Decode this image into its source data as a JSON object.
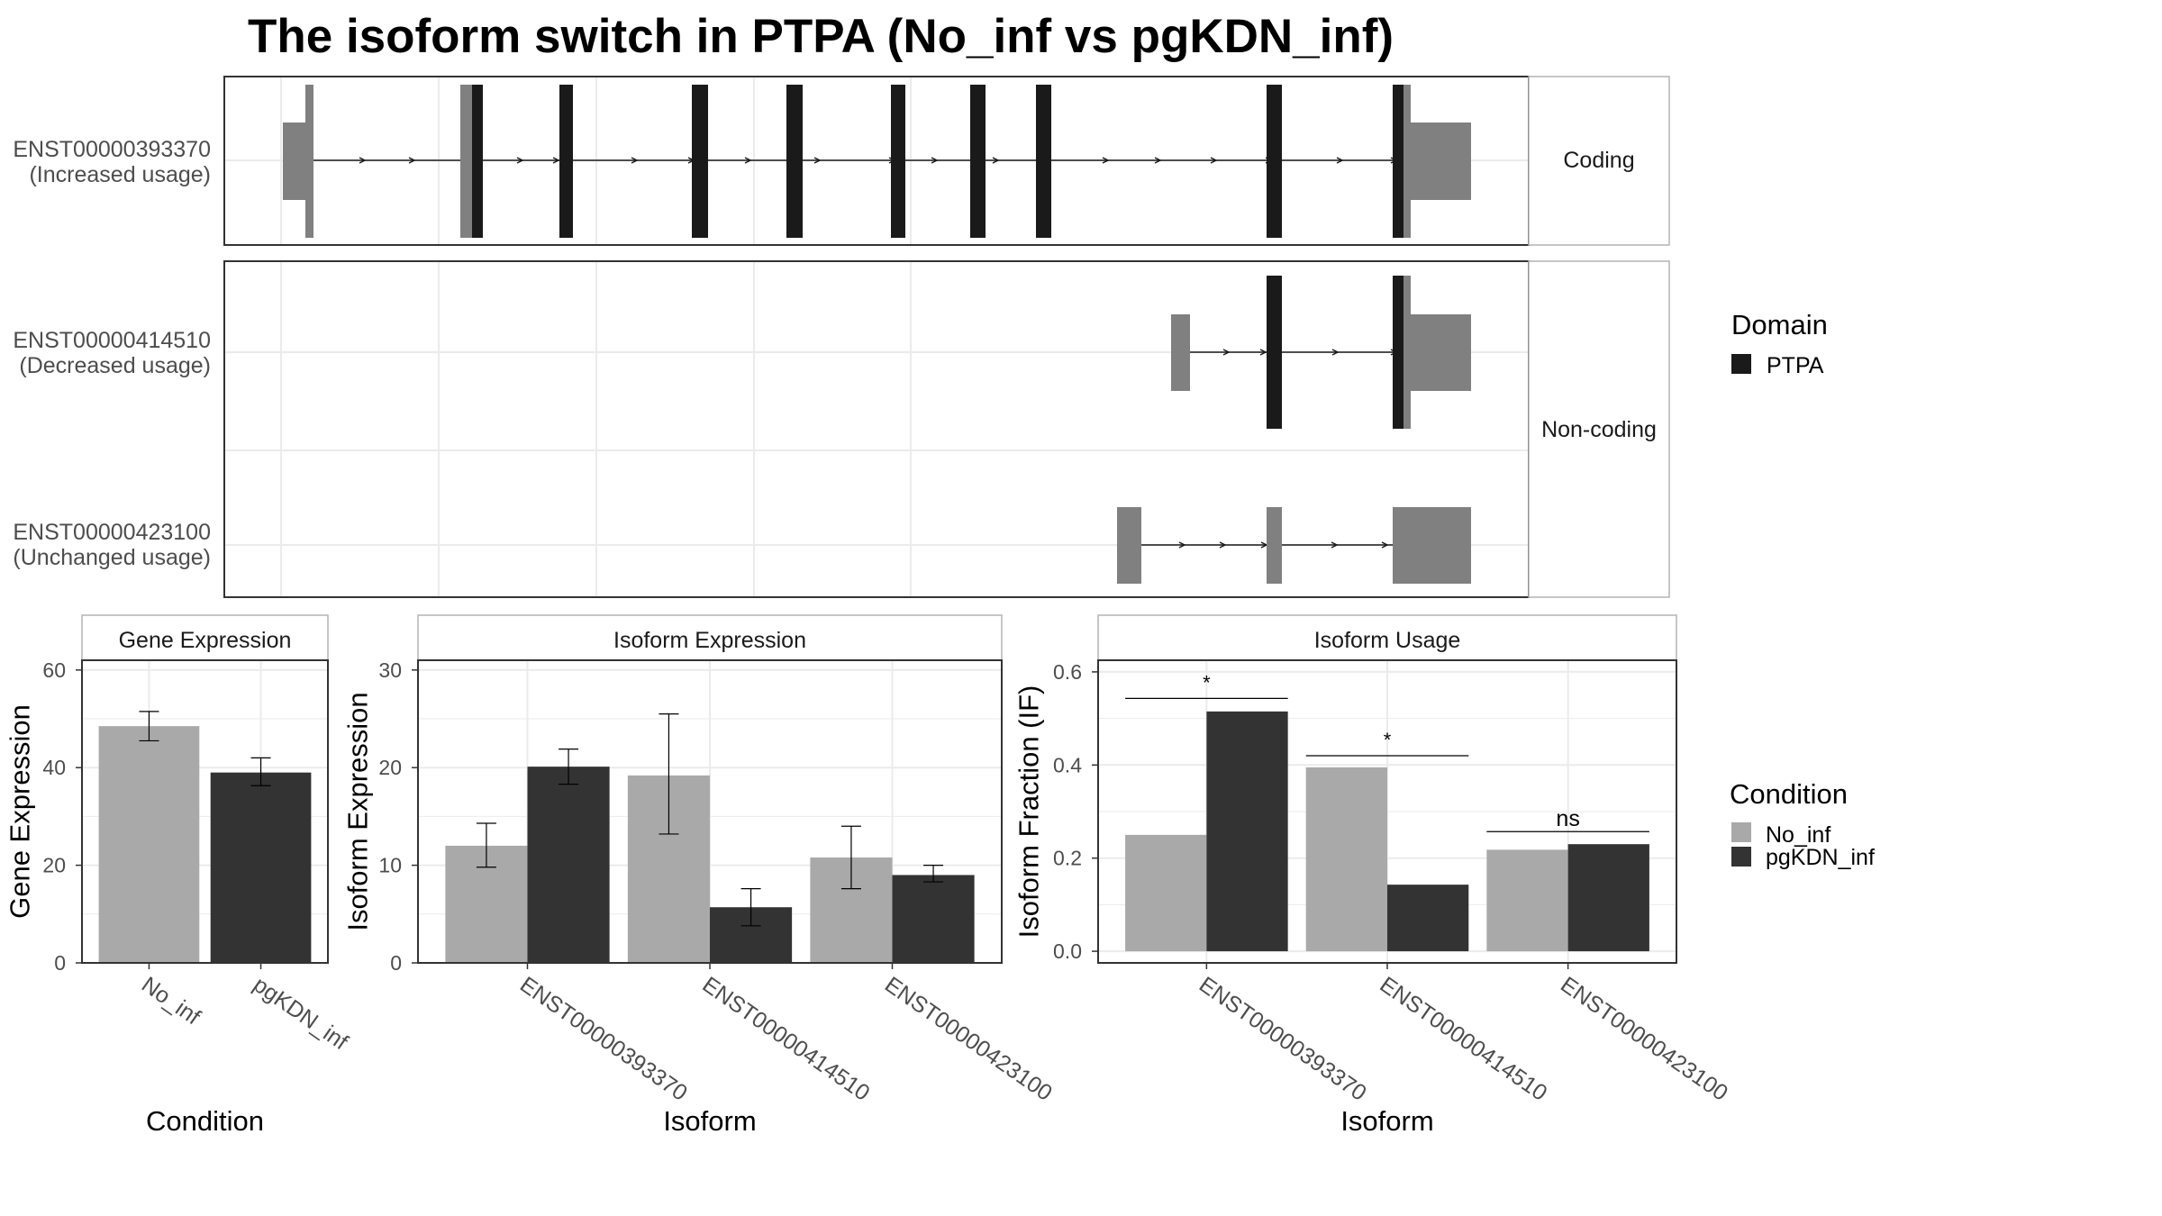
{
  "title": "The isoform switch in PTPA (No_inf vs pgKDN_inf)",
  "colors": {
    "no_inf": "#a9a9a9",
    "pgkdn_inf": "#333333",
    "utr": "#808080",
    "cds": "#1a1a1a",
    "grid": "#ebebeb",
    "strip": "#ffffff",
    "frame": "#333333",
    "strip_border": "#b3b3b3"
  },
  "structure_panel": {
    "facets": [
      "Coding",
      "Non-coding"
    ],
    "transcripts": [
      {
        "id": "ENST00000393370",
        "usage": "(Increased usage)",
        "facet": "Coding"
      },
      {
        "id": "ENST00000414510",
        "usage": "(Decreased usage)",
        "facet": "Non-coding"
      },
      {
        "id": "ENST00000423100",
        "usage": "(Unchanged usage)",
        "facet": "Non-coding"
      }
    ],
    "domain_legend": {
      "title": "Domain",
      "entries": [
        "PTPA"
      ]
    }
  },
  "condition_legend": {
    "title": "Condition",
    "entries": [
      "No_inf",
      "pgKDN_inf"
    ]
  },
  "chart_data": [
    {
      "type": "bar",
      "strip_title": "Gene Expression",
      "xlabel": "Condition",
      "ylabel": "Gene Expression",
      "categories": [
        "No_inf",
        "pgKDN_inf"
      ],
      "values": [
        48.5,
        39
      ],
      "errors": [
        [
          45.5,
          51.5
        ],
        [
          36.3,
          42
        ]
      ],
      "ylim": [
        0,
        62
      ],
      "yticks": [
        0,
        20,
        40,
        60
      ]
    },
    {
      "type": "bar",
      "strip_title": "Isoform Expression",
      "xlabel": "Isoform",
      "ylabel": "Isoform Expression",
      "categories": [
        "ENST00000393370",
        "ENST00000414510",
        "ENST00000423100"
      ],
      "series": [
        {
          "name": "No_inf",
          "values": [
            12,
            19.2,
            10.8
          ],
          "errors": [
            [
              9.8,
              14.3
            ],
            [
              13.2,
              25.5
            ],
            [
              7.6,
              14
            ]
          ]
        },
        {
          "name": "pgKDN_inf",
          "values": [
            20.1,
            5.7,
            9
          ],
          "errors": [
            [
              18.3,
              21.9
            ],
            [
              3.8,
              7.6
            ],
            [
              8.3,
              10
            ]
          ]
        }
      ],
      "ylim": [
        0,
        31
      ],
      "yticks": [
        0,
        10,
        20,
        30
      ]
    },
    {
      "type": "bar",
      "strip_title": "Isoform Usage",
      "xlabel": "Isoform",
      "ylabel": "Isoform Fraction (IF)",
      "categories": [
        "ENST00000393370",
        "ENST00000414510",
        "ENST00000423100"
      ],
      "series": [
        {
          "name": "No_inf",
          "values": [
            0.25,
            0.395,
            0.218
          ]
        },
        {
          "name": "pgKDN_inf",
          "values": [
            0.515,
            0.143,
            0.23
          ]
        }
      ],
      "significance": [
        "*",
        "*",
        "ns"
      ],
      "sig_line_y": [
        0.543,
        0.42,
        0.257
      ],
      "ylim": [
        -0.025,
        0.625
      ],
      "yticks": [
        0.0,
        0.2,
        0.4,
        0.6
      ],
      "ytick_labels": [
        "0.0",
        "0.2",
        "0.4",
        "0.6"
      ]
    }
  ]
}
